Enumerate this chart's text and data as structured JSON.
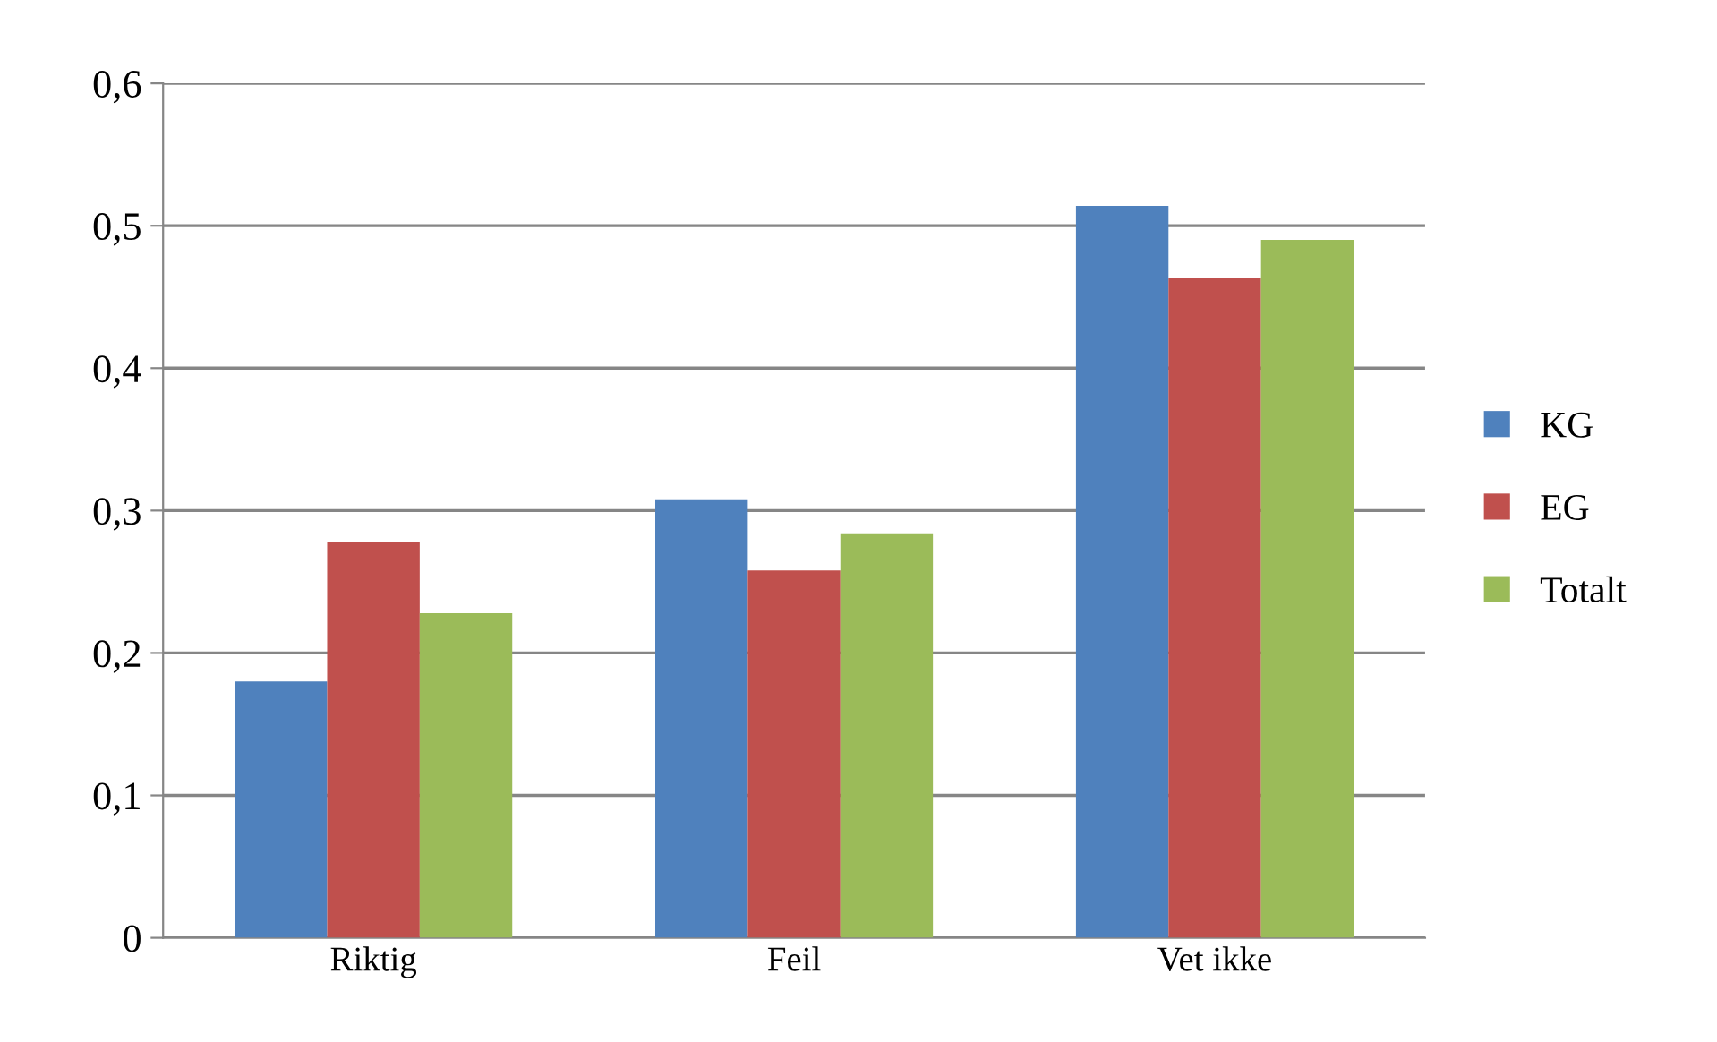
{
  "chart_data": {
    "type": "bar",
    "categories": [
      "Riktig",
      "Feil",
      "Vet ikke"
    ],
    "series": [
      {
        "name": "KG",
        "color": "#4f81bd",
        "values": [
          0.18,
          0.308,
          0.514
        ]
      },
      {
        "name": "EG",
        "color": "#c0504d",
        "values": [
          0.278,
          0.258,
          0.463
        ]
      },
      {
        "name": "Totalt",
        "color": "#9bbb59",
        "values": [
          0.228,
          0.284,
          0.49
        ]
      }
    ],
    "ylim": [
      0,
      0.6
    ],
    "yticks": [
      0,
      {
        "value": 0.1,
        "label": "0,1"
      },
      {
        "value": 0.2,
        "label": "0,2"
      },
      {
        "value": 0.3,
        "label": "0,3"
      },
      {
        "value": 0.4,
        "label": "0,4"
      },
      {
        "value": 0.5,
        "label": "0,5"
      },
      {
        "value": 0.6,
        "label": "0,6"
      }
    ],
    "grid": "y",
    "legend": "right"
  }
}
